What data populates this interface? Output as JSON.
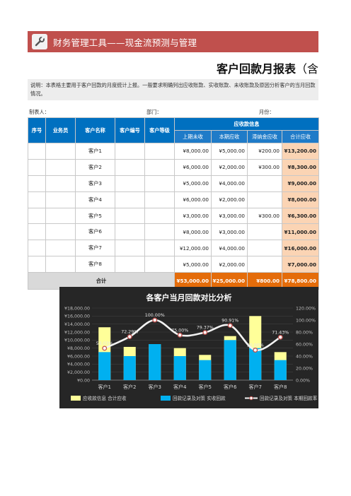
{
  "header": {
    "tool_title": "财务管理工具——现金流预测与管理",
    "icon": "wrench-icon"
  },
  "report": {
    "title": "客户回款月报表",
    "title_suffix": "（含"
  },
  "description": "说明：本表格主要用于客户回款的月度统计上报。一般要求明确列出应收账款、实收账款、未收账款及原因分析客户的当月回款情况。",
  "meta": {
    "preparer_label": "制表人：",
    "department_label": "部门：",
    "month_label": "月份："
  },
  "table": {
    "headers": {
      "seq": "序号",
      "salesperson": "业务员",
      "customer_name": "客户名称",
      "customer_no": "客户编号",
      "customer_level": "客户等级",
      "group": "应收款信息"
    },
    "sub_headers": [
      "上期未收",
      "本期应收",
      "滞纳金应收",
      "合计应收"
    ],
    "rows": [
      {
        "name": "客户1",
        "prev": "¥8,000.00",
        "curr": "¥5,000.00",
        "late": "¥200.00",
        "total": "¥13,200.00"
      },
      {
        "name": "客户2",
        "prev": "¥6,000.00",
        "curr": "¥2,000.00",
        "late": "¥300.00",
        "total": "¥8,300.00"
      },
      {
        "name": "客户3",
        "prev": "¥5,000.00",
        "curr": "¥4,000.00",
        "late": "",
        "total": "¥9,000.00"
      },
      {
        "name": "客户4",
        "prev": "¥6,000.00",
        "curr": "¥2,000.00",
        "late": "",
        "total": "¥8,000.00"
      },
      {
        "name": "客户5",
        "prev": "¥3,000.00",
        "curr": "¥3,000.00",
        "late": "¥300.00",
        "total": "¥6,300.00"
      },
      {
        "name": "客户6",
        "prev": "¥8,000.00",
        "curr": "¥3,000.00",
        "late": "",
        "total": "¥11,000.00"
      },
      {
        "name": "客户7",
        "prev": "¥12,000.00",
        "curr": "¥4,000.00",
        "late": "",
        "total": "¥16,000.00"
      },
      {
        "name": "客户8",
        "prev": "¥5,000.00",
        "curr": "¥2,000.00",
        "late": "",
        "total": "¥7,000.00"
      }
    ],
    "sum": {
      "label": "合计",
      "prev": "¥53,000.00",
      "curr": "¥25,000.00",
      "late": "¥800.00",
      "total": "¥78,800.00"
    }
  },
  "colors": {
    "accent_red": "#c0504d",
    "header_blue": "#0070c0",
    "total_fill": "#fbd4b4",
    "sum_orange": "#e46c0a",
    "chart_bg": "#262626",
    "bar_yellow": "#ffff99",
    "bar_blue": "#00b0f0",
    "line_white": "#f2f2f2",
    "marker_red": "#c0504d"
  },
  "chart_data": {
    "type": "bar",
    "title": "各客户当月回款对比分析",
    "categories": [
      "客户1",
      "客户2",
      "客户3",
      "客户4",
      "客户5",
      "客户6",
      "客户7",
      "客户8"
    ],
    "series": [
      {
        "name": "应收款信息 合计应收",
        "values": [
          13200,
          8300,
          9000,
          8000,
          6300,
          11000,
          16000,
          7000
        ]
      },
      {
        "name": "回款记录及对策 实收回款",
        "values": [
          7000,
          6000,
          9000,
          6000,
          5000,
          10000,
          8000,
          5000
        ]
      },
      {
        "name": "回款记录及对策 本期回款率",
        "values": [
          53.03,
          72.29,
          100.0,
          75.0,
          79.37,
          90.91,
          50.0,
          71.43
        ]
      }
    ],
    "point_labels": [
      "53.03%",
      "72.29%",
      "100.00%",
      "75.00%",
      "79.37%",
      "90.91%",
      "50.00%",
      "71.43%"
    ],
    "y_ticks": [
      "¥0.00",
      "¥2,000.00",
      "¥4,000.00",
      "¥6,000.00",
      "¥8,000.00",
      "¥10,000.00",
      "¥12,000.00",
      "¥14,000.00",
      "¥16,000.00",
      "¥18,000.00"
    ],
    "y2_ticks": [
      "0.00%",
      "20.00%",
      "40.00%",
      "60.00%",
      "80.00%",
      "100.00%",
      "120.00%"
    ],
    "ylim": [
      0,
      18000
    ],
    "y2lim": [
      0,
      120
    ],
    "legend_position": "bottom",
    "grid": true
  }
}
